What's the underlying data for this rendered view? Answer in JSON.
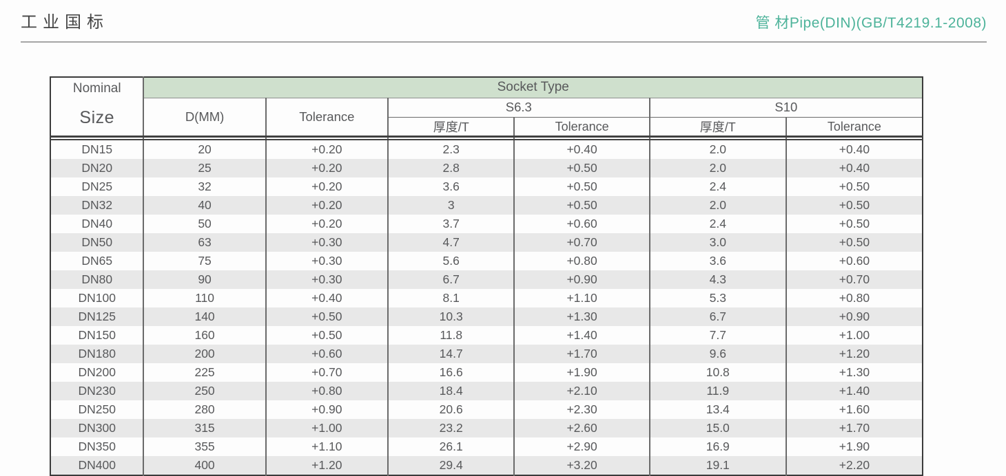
{
  "page": {
    "title_left": "工业国标",
    "title_right": "管 材Pipe(DIN)(GB/T4219.1-2008)",
    "accent_color": "#4db39a",
    "header_band_color": "#cfe0cd",
    "stripe_color": "#e8e8e8"
  },
  "table": {
    "header": {
      "nominal_top": "Nominal",
      "nominal_bottom": "Size",
      "socket_type": "Socket Type",
      "d_mm": "D(MM)",
      "tolerance": "Tolerance",
      "s63": "S6.3",
      "s10": "S10",
      "thickness": "厚度/T"
    },
    "rows": [
      [
        "DN15",
        "20",
        "+0.20",
        "2.3",
        "+0.40",
        "2.0",
        "+0.40"
      ],
      [
        "DN20",
        "25",
        "+0.20",
        "2.8",
        "+0.50",
        "2.0",
        "+0.40"
      ],
      [
        "DN25",
        "32",
        "+0.20",
        "3.6",
        "+0.50",
        "2.4",
        "+0.50"
      ],
      [
        "DN32",
        "40",
        "+0.20",
        "3",
        "+0.50",
        "2.0",
        "+0.50"
      ],
      [
        "DN40",
        "50",
        "+0.20",
        "3.7",
        "+0.60",
        "2.4",
        "+0.50"
      ],
      [
        "DN50",
        "63",
        "+0.30",
        "4.7",
        "+0.70",
        "3.0",
        "+0.50"
      ],
      [
        "DN65",
        "75",
        "+0.30",
        "5.6",
        "+0.80",
        "3.6",
        "+0.60"
      ],
      [
        "DN80",
        "90",
        "+0.30",
        "6.7",
        "+0.90",
        "4.3",
        "+0.70"
      ],
      [
        "DN100",
        "110",
        "+0.40",
        "8.1",
        "+1.10",
        "5.3",
        "+0.80"
      ],
      [
        "DN125",
        "140",
        "+0.50",
        "10.3",
        "+1.30",
        "6.7",
        "+0.90"
      ],
      [
        "DN150",
        "160",
        "+0.50",
        "11.8",
        "+1.40",
        "7.7",
        "+1.00"
      ],
      [
        "DN180",
        "200",
        "+0.60",
        "14.7",
        "+1.70",
        "9.6",
        "+1.20"
      ],
      [
        "DN200",
        "225",
        "+0.70",
        "16.6",
        "+1.90",
        "10.8",
        "+1.30"
      ],
      [
        "DN230",
        "250",
        "+0.80",
        "18.4",
        "+2.10",
        "11.9",
        "+1.40"
      ],
      [
        "DN250",
        "280",
        "+0.90",
        "20.6",
        "+2.30",
        "13.4",
        "+1.60"
      ],
      [
        "DN300",
        "315",
        "+1.00",
        "23.2",
        "+2.60",
        "15.0",
        "+1.70"
      ],
      [
        "DN350",
        "355",
        "+1.10",
        "26.1",
        "+2.90",
        "16.9",
        "+1.90"
      ],
      [
        "DN400",
        "400",
        "+1.20",
        "29.4",
        "+3.20",
        "19.1",
        "+2.20"
      ]
    ]
  }
}
